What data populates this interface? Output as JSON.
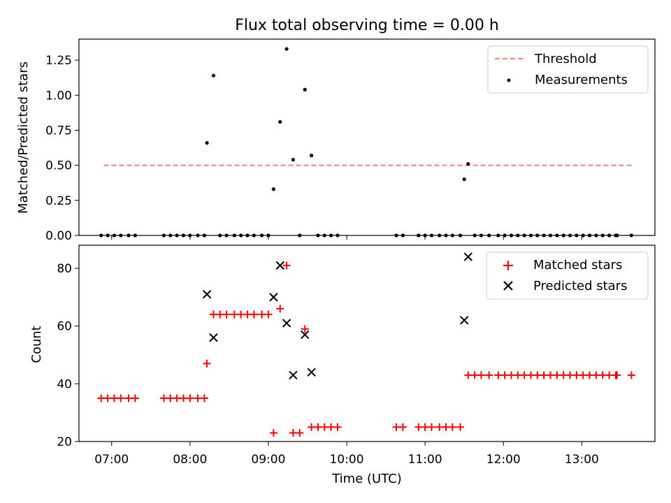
{
  "figure": {
    "title": "Flux total observing time = 0.00 h",
    "xlabel": "Time (UTC)",
    "xtick_labels": [
      "07:00",
      "08:00",
      "09:00",
      "10:00",
      "11:00",
      "12:00",
      "13:00"
    ]
  },
  "chart_data": [
    {
      "type": "scatter",
      "panel": "top",
      "ylabel": "Matched/Predicted stars",
      "xlim": [
        "06:35",
        "13:56"
      ],
      "ylim": [
        0,
        1.4
      ],
      "yticks": [
        0.0,
        0.25,
        0.5,
        0.75,
        1.0,
        1.25
      ],
      "ytick_labels": [
        "0.00",
        "0.25",
        "0.50",
        "0.75",
        "1.00",
        "1.25"
      ],
      "legend_position": "top-right",
      "threshold": {
        "name": "Threshold",
        "color": "#ff7f7f",
        "style": "dashed",
        "y": 0.5,
        "x_start": "06:54",
        "x_end": "13:39"
      },
      "series": [
        {
          "name": "Measurements",
          "color": "#000000",
          "marker": "dot",
          "points": [
            [
              "06:52",
              0
            ],
            [
              "06:57",
              0
            ],
            [
              "07:02",
              0
            ],
            [
              "07:07",
              0
            ],
            [
              "07:13",
              0
            ],
            [
              "07:18",
              0
            ],
            [
              "07:40",
              0
            ],
            [
              "07:45",
              0
            ],
            [
              "07:50",
              0
            ],
            [
              "07:55",
              0
            ],
            [
              "08:00",
              0
            ],
            [
              "08:06",
              0
            ],
            [
              "08:11",
              0
            ],
            [
              "08:13",
              0.66
            ],
            [
              "08:18",
              1.14
            ],
            [
              "08:23",
              0
            ],
            [
              "08:28",
              0
            ],
            [
              "08:34",
              0
            ],
            [
              "08:39",
              0
            ],
            [
              "08:44",
              0
            ],
            [
              "08:49",
              0
            ],
            [
              "08:55",
              0
            ],
            [
              "09:00",
              0
            ],
            [
              "09:04",
              0.33
            ],
            [
              "09:09",
              0.81
            ],
            [
              "09:14",
              1.33
            ],
            [
              "09:19",
              0.54
            ],
            [
              "09:24",
              0
            ],
            [
              "09:28",
              1.04
            ],
            [
              "09:33",
              0.57
            ],
            [
              "09:38",
              0
            ],
            [
              "09:43",
              0
            ],
            [
              "09:48",
              0
            ],
            [
              "09:53",
              0
            ],
            [
              "10:38",
              0
            ],
            [
              "10:43",
              0
            ],
            [
              "10:55",
              0
            ],
            [
              "11:00",
              0
            ],
            [
              "11:05",
              0
            ],
            [
              "11:11",
              0
            ],
            [
              "11:16",
              0
            ],
            [
              "11:21",
              0
            ],
            [
              "11:27",
              0
            ],
            [
              "11:30",
              0.4
            ],
            [
              "11:33",
              0.51
            ],
            [
              "11:38",
              0
            ],
            [
              "11:43",
              0
            ],
            [
              "11:49",
              0
            ],
            [
              "11:56",
              0
            ],
            [
              "12:01",
              0
            ],
            [
              "12:06",
              0
            ],
            [
              "12:11",
              0
            ],
            [
              "12:16",
              0
            ],
            [
              "12:21",
              0
            ],
            [
              "12:26",
              0
            ],
            [
              "12:31",
              0
            ],
            [
              "12:36",
              0
            ],
            [
              "12:41",
              0
            ],
            [
              "12:46",
              0
            ],
            [
              "12:51",
              0
            ],
            [
              "12:56",
              0
            ],
            [
              "13:01",
              0
            ],
            [
              "13:06",
              0
            ],
            [
              "13:11",
              0
            ],
            [
              "13:16",
              0
            ],
            [
              "13:21",
              0
            ],
            [
              "13:26",
              0
            ],
            [
              "13:27",
              0
            ],
            [
              "13:38",
              0
            ]
          ]
        }
      ]
    },
    {
      "type": "scatter",
      "panel": "bottom",
      "ylabel": "Count",
      "xlabel": "Time (UTC)",
      "xlim": [
        "06:35",
        "13:56"
      ],
      "ylim": [
        20,
        88
      ],
      "yticks": [
        20,
        40,
        60,
        80
      ],
      "ytick_labels": [
        "20",
        "40",
        "60",
        "80"
      ],
      "legend_position": "top-right",
      "series": [
        {
          "name": "Matched stars",
          "color": "#ff0000",
          "marker": "plus",
          "points": [
            [
              "06:52",
              35
            ],
            [
              "06:57",
              35
            ],
            [
              "07:02",
              35
            ],
            [
              "07:07",
              35
            ],
            [
              "07:13",
              35
            ],
            [
              "07:18",
              35
            ],
            [
              "07:40",
              35
            ],
            [
              "07:45",
              35
            ],
            [
              "07:50",
              35
            ],
            [
              "07:55",
              35
            ],
            [
              "08:00",
              35
            ],
            [
              "08:06",
              35
            ],
            [
              "08:11",
              35
            ],
            [
              "08:13",
              47
            ],
            [
              "08:18",
              64
            ],
            [
              "08:23",
              64
            ],
            [
              "08:28",
              64
            ],
            [
              "08:34",
              64
            ],
            [
              "08:39",
              64
            ],
            [
              "08:44",
              64
            ],
            [
              "08:49",
              64
            ],
            [
              "08:55",
              64
            ],
            [
              "09:00",
              64
            ],
            [
              "09:04",
              23
            ],
            [
              "09:09",
              66
            ],
            [
              "09:14",
              81
            ],
            [
              "09:19",
              23
            ],
            [
              "09:24",
              23
            ],
            [
              "09:28",
              59
            ],
            [
              "09:33",
              25
            ],
            [
              "09:38",
              25
            ],
            [
              "09:43",
              25
            ],
            [
              "09:48",
              25
            ],
            [
              "09:53",
              25
            ],
            [
              "10:38",
              25
            ],
            [
              "10:43",
              25
            ],
            [
              "10:55",
              25
            ],
            [
              "11:00",
              25
            ],
            [
              "11:05",
              25
            ],
            [
              "11:11",
              25
            ],
            [
              "11:16",
              25
            ],
            [
              "11:21",
              25
            ],
            [
              "11:27",
              25
            ],
            [
              "11:33",
              43
            ],
            [
              "11:38",
              43
            ],
            [
              "11:43",
              43
            ],
            [
              "11:49",
              43
            ],
            [
              "11:56",
              43
            ],
            [
              "12:01",
              43
            ],
            [
              "12:06",
              43
            ],
            [
              "12:11",
              43
            ],
            [
              "12:16",
              43
            ],
            [
              "12:21",
              43
            ],
            [
              "12:26",
              43
            ],
            [
              "12:31",
              43
            ],
            [
              "12:36",
              43
            ],
            [
              "12:41",
              43
            ],
            [
              "12:46",
              43
            ],
            [
              "12:51",
              43
            ],
            [
              "12:56",
              43
            ],
            [
              "13:01",
              43
            ],
            [
              "13:06",
              43
            ],
            [
              "13:11",
              43
            ],
            [
              "13:16",
              43
            ],
            [
              "13:21",
              43
            ],
            [
              "13:26",
              43
            ],
            [
              "13:27",
              43
            ],
            [
              "13:38",
              43
            ]
          ]
        },
        {
          "name": "Predicted stars",
          "color": "#000000",
          "marker": "x",
          "points": [
            [
              "08:13",
              71
            ],
            [
              "08:18",
              56
            ],
            [
              "09:04",
              70
            ],
            [
              "09:09",
              81
            ],
            [
              "09:14",
              61
            ],
            [
              "09:19",
              43
            ],
            [
              "09:28",
              57
            ],
            [
              "09:33",
              44
            ],
            [
              "11:30",
              62
            ],
            [
              "11:33",
              84
            ]
          ]
        }
      ]
    }
  ]
}
